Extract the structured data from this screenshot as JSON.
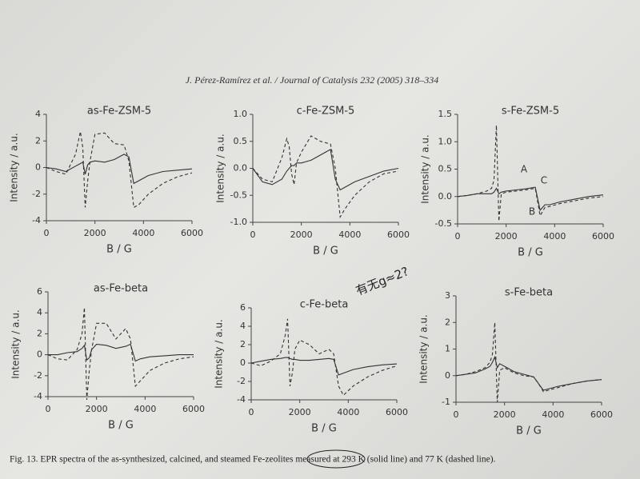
{
  "header": "J. Pérez-Ramírez et al. / Journal of Catalysis 232 (2005) 318–334",
  "handwriting": "有无g≈2?",
  "caption": "Fig. 13. EPR spectra of the as-synthesized, calcined, and steamed Fe-zeolites measured at 293 K (solid line) and 77 K (dashed line).",
  "chart_data": [
    {
      "type": "line",
      "title": "as-Fe-ZSM-5",
      "x_label": "B / G",
      "y_label": "Intensity / a.u.",
      "xlim": [
        0,
        6000
      ],
      "xticks": [
        0,
        2000,
        4000,
        6000
      ],
      "ylim": [
        -4,
        4
      ],
      "yticks": [
        -4,
        -2,
        0,
        2,
        4
      ],
      "x": [
        0,
        400,
        800,
        1200,
        1400,
        1500,
        1600,
        1700,
        1800,
        2000,
        2400,
        2800,
        3200,
        3400,
        3600,
        3800,
        4200,
        4800,
        5400,
        6000
      ],
      "series": [
        {
          "style": "solid",
          "color": "#333333",
          "values": [
            0,
            -0.1,
            -0.3,
            0.1,
            0.3,
            0.4,
            -0.5,
            0.2,
            0.4,
            0.5,
            0.4,
            0.6,
            1.0,
            0.8,
            -1.2,
            -1.0,
            -0.6,
            -0.3,
            -0.2,
            -0.1
          ]
        },
        {
          "style": "dashed",
          "color": "#333333",
          "values": [
            0,
            -0.3,
            -0.5,
            1.0,
            2.7,
            1.5,
            -3.0,
            -1.0,
            0.5,
            2.5,
            2.6,
            1.8,
            1.7,
            0.5,
            -3.0,
            -2.8,
            -2.0,
            -1.2,
            -0.7,
            -0.4
          ]
        }
      ]
    },
    {
      "type": "line",
      "title": "c-Fe-ZSM-5",
      "x_label": "B / G",
      "y_label": "Intensity / a.u.",
      "xlim": [
        0,
        6000
      ],
      "xticks": [
        0,
        2000,
        4000,
        6000
      ],
      "ylim": [
        -1,
        1
      ],
      "yticks": [
        {
          "value": -1,
          "label": "-1.0"
        },
        -0.5,
        {
          "value": 0,
          "label": "0.0"
        },
        0.5,
        {
          "value": 1,
          "label": "1.0"
        }
      ],
      "x": [
        0,
        400,
        800,
        1200,
        1400,
        1500,
        1600,
        1700,
        1800,
        2000,
        2400,
        2800,
        3200,
        3400,
        3600,
        3800,
        4200,
        4800,
        5400,
        6000
      ],
      "series": [
        {
          "style": "solid",
          "color": "#333333",
          "values": [
            0,
            -0.25,
            -0.3,
            -0.2,
            -0.05,
            0,
            0.05,
            0.05,
            0.1,
            0.1,
            0.15,
            0.25,
            0.35,
            -0.2,
            -0.4,
            -0.35,
            -0.25,
            -0.15,
            -0.05,
            0
          ]
        },
        {
          "style": "dashed",
          "color": "#333333",
          "values": [
            0,
            -0.2,
            -0.25,
            0.2,
            0.55,
            0.4,
            -0.1,
            -0.3,
            0.1,
            0.3,
            0.6,
            0.5,
            0.45,
            0,
            -0.9,
            -0.75,
            -0.5,
            -0.25,
            -0.1,
            -0.05
          ]
        }
      ]
    },
    {
      "type": "line",
      "title": "s-Fe-ZSM-5",
      "x_label": "B / G",
      "y_label": "Intensity / a.u.",
      "xlim": [
        0,
        6000
      ],
      "xticks": [
        0,
        2000,
        4000,
        6000
      ],
      "ylim": [
        -0.5,
        1.5
      ],
      "yticks": [
        -0.5,
        {
          "value": 0,
          "label": "0.0"
        },
        0.5,
        {
          "value": 1,
          "label": "1.0"
        },
        1.5
      ],
      "annotations": [
        "A",
        "B",
        "C"
      ],
      "x": [
        0,
        400,
        800,
        1200,
        1400,
        1500,
        1600,
        1700,
        1800,
        2000,
        2400,
        2800,
        3200,
        3400,
        3600,
        3800,
        4200,
        4800,
        5400,
        6000
      ],
      "series": [
        {
          "style": "solid",
          "color": "#333333",
          "values": [
            0,
            0.02,
            0.05,
            0.05,
            0.05,
            0.08,
            0.15,
            0.05,
            0.08,
            0.1,
            0.12,
            0.14,
            0.17,
            -0.25,
            -0.15,
            -0.15,
            -0.1,
            -0.05,
            0,
            0.03
          ]
        },
        {
          "style": "dashed",
          "color": "#333333",
          "values": [
            0,
            0.02,
            0.05,
            0.1,
            0.15,
            0.3,
            1.3,
            -0.45,
            0.05,
            0.08,
            0.1,
            0.12,
            0.15,
            -0.35,
            -0.2,
            -0.18,
            -0.13,
            -0.08,
            -0.03,
            0
          ]
        }
      ]
    },
    {
      "type": "line",
      "title": "as-Fe-beta",
      "x_label": "B / G",
      "y_label": "Intensity / a.u.",
      "xlim": [
        0,
        6000
      ],
      "xticks": [
        0,
        2000,
        4000,
        6000
      ],
      "ylim": [
        -4,
        6
      ],
      "yticks": [
        -4,
        -2,
        0,
        2,
        4,
        6
      ],
      "x": [
        0,
        400,
        800,
        1200,
        1400,
        1500,
        1600,
        1700,
        1800,
        2000,
        2400,
        2800,
        3200,
        3400,
        3600,
        3800,
        4200,
        4800,
        5400,
        6000
      ],
      "series": [
        {
          "style": "solid",
          "color": "#333333",
          "values": [
            0,
            0,
            0.2,
            0.3,
            0.6,
            0.9,
            -0.5,
            -0.3,
            0.5,
            1.0,
            0.9,
            0.6,
            0.8,
            1.0,
            -0.6,
            -0.4,
            -0.2,
            -0.1,
            0,
            0
          ]
        },
        {
          "style": "dashed",
          "color": "#333333",
          "values": [
            0,
            -0.4,
            -0.5,
            0.5,
            2.0,
            4.5,
            -4.3,
            -1.5,
            0.5,
            3.0,
            3.0,
            1.5,
            2.5,
            1.5,
            -3.0,
            -2.5,
            -1.5,
            -0.8,
            -0.4,
            -0.2
          ]
        }
      ]
    },
    {
      "type": "line",
      "title": "c-Fe-beta",
      "x_label": "B / G",
      "y_label": "Intensity / a.u.",
      "xlim": [
        0,
        6000
      ],
      "xticks": [
        0,
        2000,
        4000,
        6000
      ],
      "ylim": [
        -4,
        6
      ],
      "yticks": [
        -4,
        -2,
        0,
        2,
        4,
        6
      ],
      "x": [
        0,
        400,
        800,
        1200,
        1400,
        1500,
        1600,
        1700,
        1800,
        2000,
        2400,
        2800,
        3200,
        3400,
        3600,
        3800,
        4200,
        4800,
        5400,
        6000
      ],
      "series": [
        {
          "style": "solid",
          "color": "#333333",
          "values": [
            0,
            0.2,
            0.4,
            0.5,
            0.6,
            0.6,
            0.5,
            0.4,
            0.4,
            0.3,
            0.3,
            0.4,
            0.5,
            0.4,
            -1.3,
            -1.1,
            -0.7,
            -0.4,
            -0.2,
            -0.1
          ]
        },
        {
          "style": "dashed",
          "color": "#333333",
          "values": [
            0,
            -0.3,
            0.2,
            1.0,
            3.0,
            4.8,
            -2.5,
            -1.0,
            1.5,
            2.5,
            2.0,
            1.0,
            1.5,
            1.0,
            -2.5,
            -3.5,
            -2.5,
            -1.5,
            -0.8,
            -0.3
          ]
        }
      ]
    },
    {
      "type": "line",
      "title": "s-Fe-beta",
      "x_label": "B / G",
      "y_label": "Intensity / a.u.",
      "xlim": [
        0,
        6000
      ],
      "xticks": [
        0,
        2000,
        4000,
        6000
      ],
      "ylim": [
        -1,
        3
      ],
      "yticks": [
        -1,
        0,
        1,
        2,
        3
      ],
      "x": [
        0,
        400,
        800,
        1200,
        1400,
        1500,
        1600,
        1700,
        1800,
        2000,
        2400,
        2800,
        3200,
        3400,
        3600,
        3800,
        4200,
        4800,
        5400,
        6000
      ],
      "series": [
        {
          "style": "solid",
          "color": "#333333",
          "values": [
            0,
            0.05,
            0.1,
            0.25,
            0.35,
            0.5,
            0.7,
            0.3,
            0.45,
            0.35,
            0.15,
            0.05,
            -0.05,
            -0.3,
            -0.55,
            -0.5,
            -0.4,
            -0.3,
            -0.2,
            -0.15
          ]
        },
        {
          "style": "dashed",
          "color": "#333333",
          "values": [
            0,
            0.05,
            0.15,
            0.3,
            0.5,
            0.8,
            2.0,
            -1.0,
            0.2,
            0.3,
            0.1,
            0,
            -0.05,
            -0.3,
            -0.6,
            -0.55,
            -0.45,
            -0.3,
            -0.2,
            -0.15
          ]
        }
      ]
    }
  ]
}
